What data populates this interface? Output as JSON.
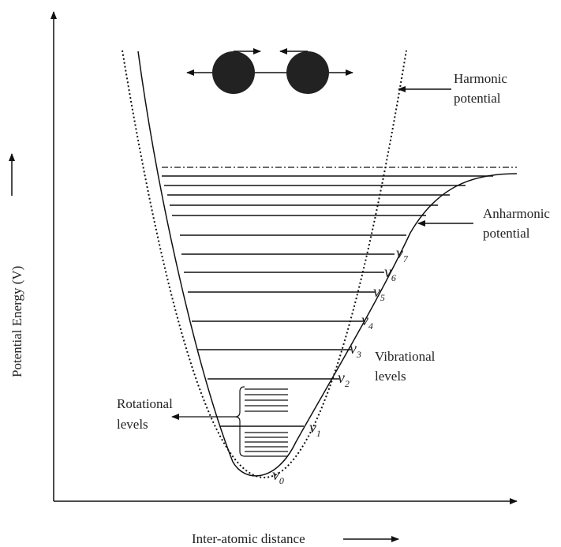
{
  "title_labels": {
    "harmonic": [
      "Harmonic",
      "potential"
    ],
    "anharmonic": [
      "Anharmonic",
      "potential"
    ],
    "vibrational": [
      "Vibrational",
      "levels"
    ],
    "rotational": [
      "Rotational",
      "levels"
    ],
    "y_axis": "Potential Energy (V)",
    "x_axis": "Inter-atomic distance"
  },
  "levels": [
    {
      "symbol": "v",
      "subscript": "0"
    },
    {
      "symbol": "v",
      "subscript": "1"
    },
    {
      "symbol": "v",
      "subscript": "2"
    },
    {
      "symbol": "v",
      "subscript": "3"
    },
    {
      "symbol": "v",
      "subscript": "4"
    },
    {
      "symbol": "v",
      "subscript": "5"
    },
    {
      "symbol": "v",
      "subscript": "6"
    },
    {
      "symbol": "v",
      "subscript": "7"
    }
  ]
}
